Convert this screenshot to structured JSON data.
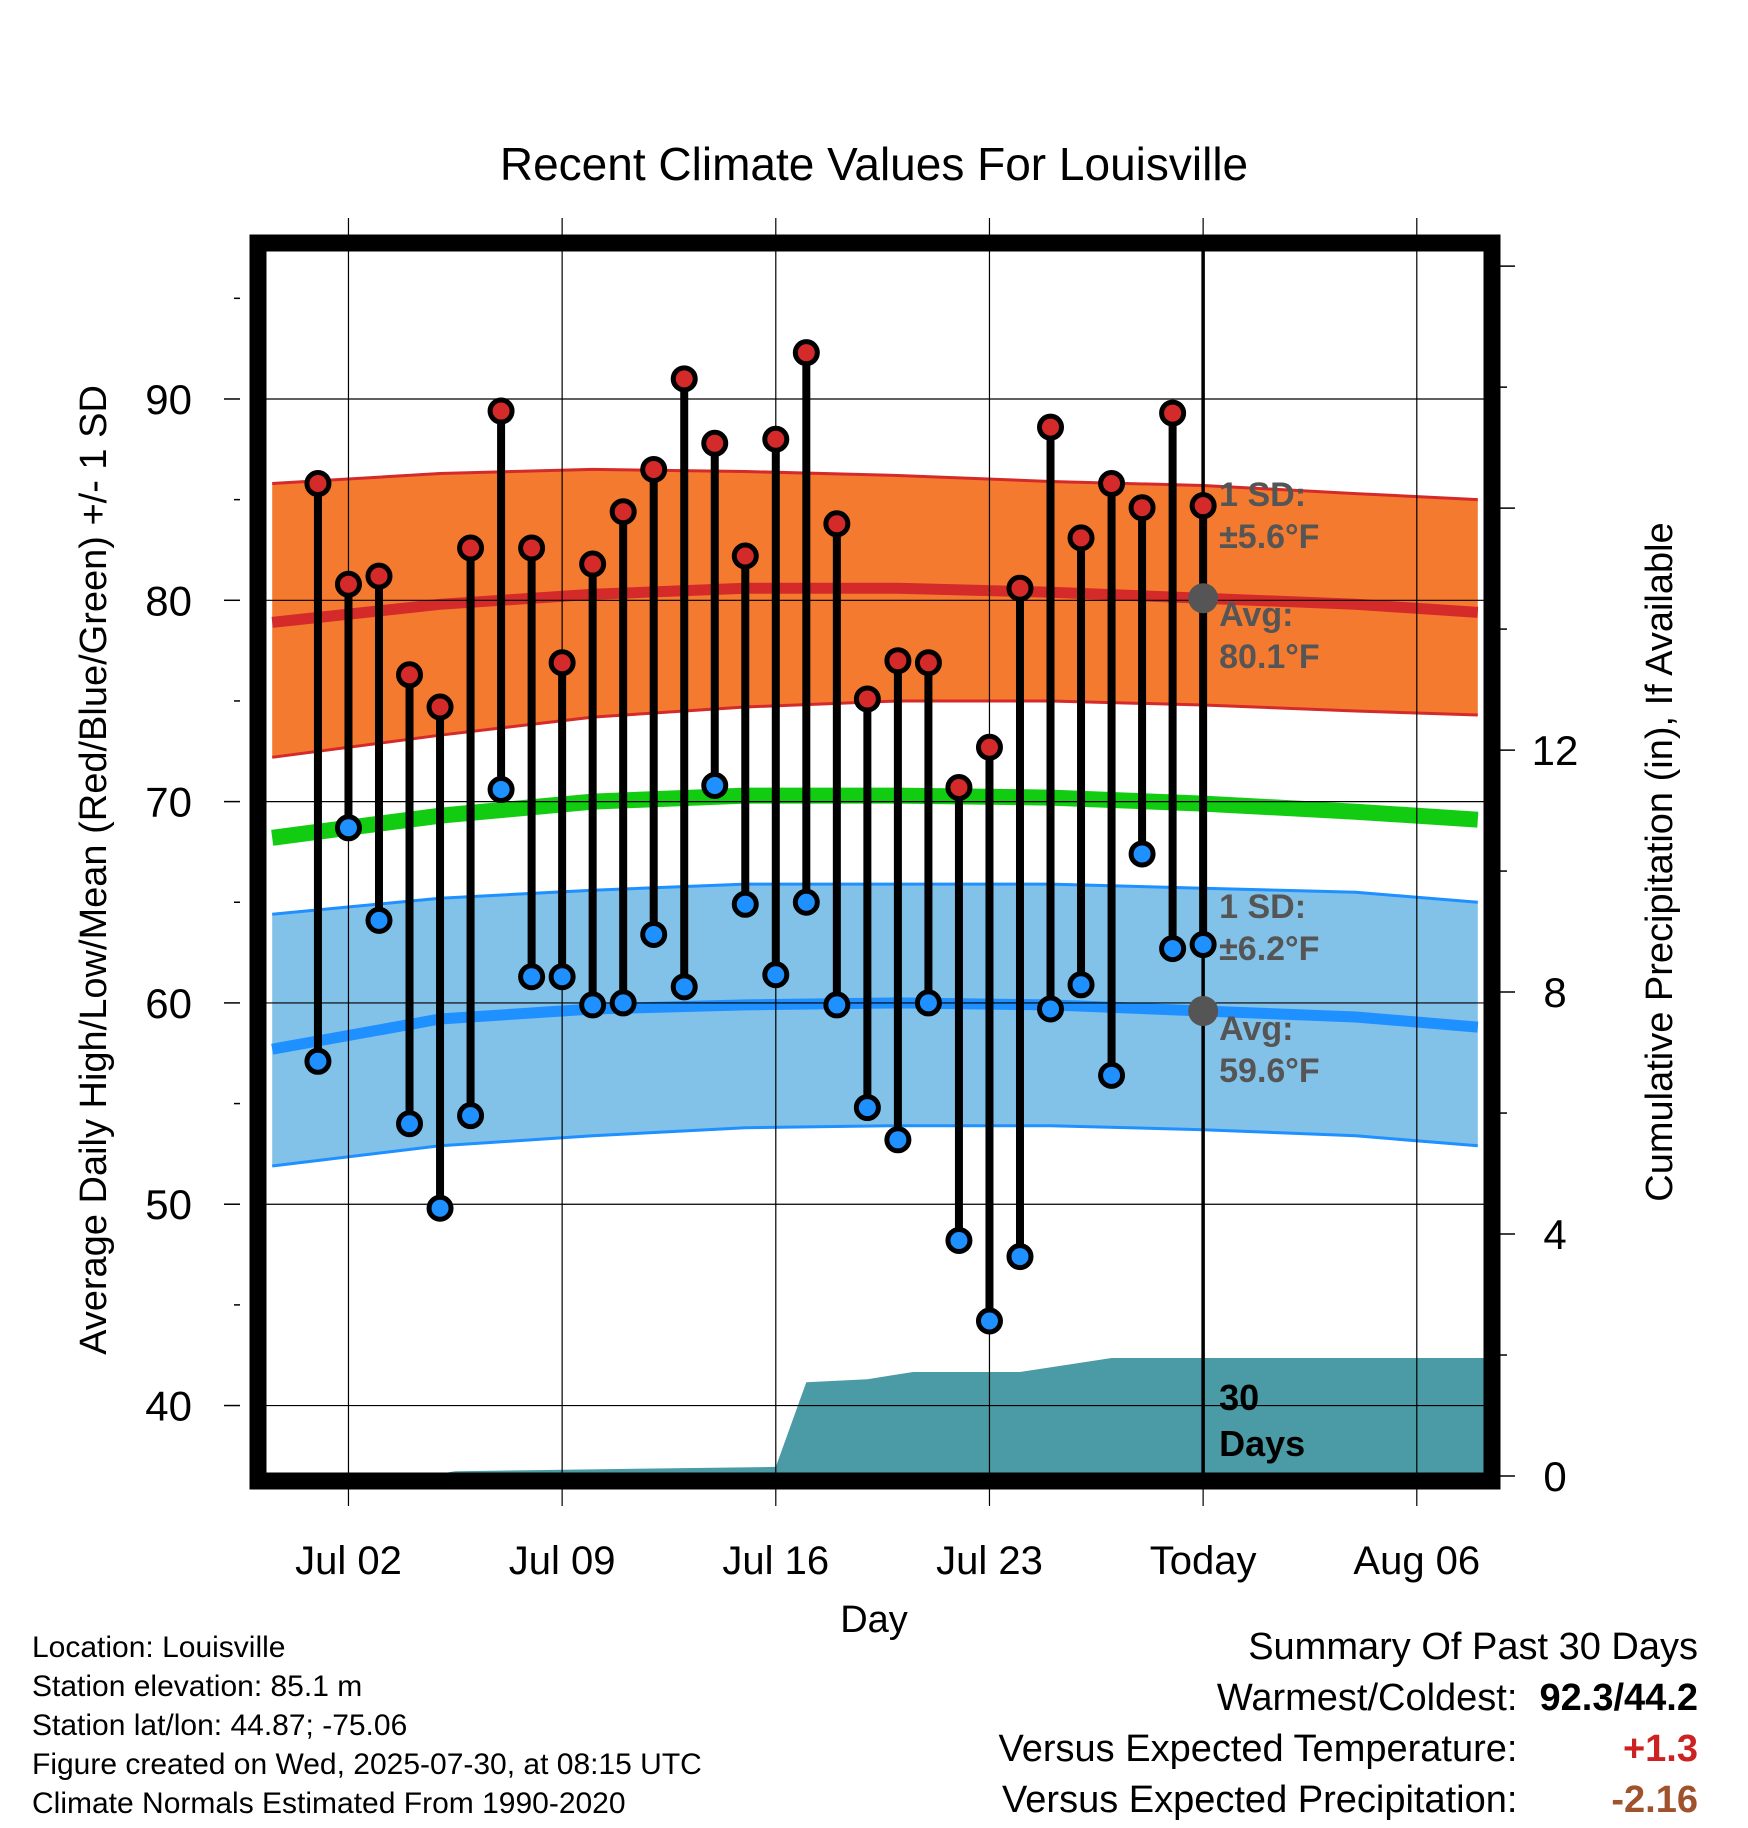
{
  "chart_data": {
    "type": "line",
    "title": "Recent Climate Values For Louisville",
    "xlabel": "Day",
    "ylabel_left": "Average Daily High/Low/Mean (Red/Blue/Green) +/- 1 SD",
    "ylabel_right": "Cumulative Precipitation (in), If Available",
    "x_ticks": [
      {
        "label": "Jul 02",
        "day": 2
      },
      {
        "label": "Jul 09",
        "day": 9
      },
      {
        "label": "Jul 16",
        "day": 16
      },
      {
        "label": "Jul 23",
        "day": 23
      },
      {
        "label": "Today",
        "day": 30
      },
      {
        "label": "Aug 06",
        "day": 37
      }
    ],
    "x_range_days": [
      -0.8,
      39.3
    ],
    "ylim_left": [
      36.5,
      97.5
    ],
    "y_ticks_left": [
      40,
      50,
      60,
      70,
      80,
      90
    ],
    "ylim_right": [
      0,
      20.3
    ],
    "y_ticks_right": [
      0,
      4,
      8,
      12
    ],
    "grid": true,
    "days": [
      1,
      2,
      3,
      4,
      5,
      6,
      7,
      8,
      9,
      10,
      11,
      12,
      13,
      14,
      15,
      16,
      17,
      18,
      19,
      20,
      21,
      22,
      23,
      24,
      25,
      26,
      27,
      28,
      29,
      30
    ],
    "daily_high": [
      85.8,
      80.8,
      81.2,
      76.3,
      74.7,
      82.6,
      89.4,
      82.6,
      76.9,
      81.8,
      84.4,
      86.5,
      91.0,
      87.8,
      82.2,
      88.0,
      92.3,
      83.8,
      75.1,
      77.0,
      76.9,
      70.7,
      72.7,
      80.6,
      88.6,
      83.1,
      85.8,
      84.6,
      89.3,
      84.7
    ],
    "daily_low": [
      57.1,
      68.7,
      64.1,
      54.0,
      49.8,
      54.4,
      70.6,
      61.3,
      61.3,
      59.9,
      60.0,
      63.4,
      60.8,
      70.8,
      64.9,
      61.4,
      65.0,
      59.9,
      54.8,
      53.2,
      60.0,
      48.2,
      44.2,
      47.4,
      59.7,
      60.9,
      56.4,
      67.4,
      62.7,
      62.9
    ],
    "normals_days": [
      -0.5,
      5,
      10,
      15,
      20,
      25,
      30,
      35,
      39
    ],
    "avg_high": [
      78.9,
      79.8,
      80.3,
      80.6,
      80.6,
      80.4,
      80.1,
      79.8,
      79.4
    ],
    "avg_high_upper": [
      85.8,
      86.3,
      86.5,
      86.4,
      86.2,
      85.9,
      85.7,
      85.3,
      85.0
    ],
    "avg_high_lower": [
      72.2,
      73.3,
      74.2,
      74.7,
      75.0,
      75.0,
      74.8,
      74.5,
      74.3
    ],
    "avg_mean": [
      68.2,
      69.3,
      70.0,
      70.3,
      70.3,
      70.2,
      69.9,
      69.5,
      69.1
    ],
    "avg_low": [
      57.7,
      59.2,
      59.7,
      59.9,
      60.0,
      59.9,
      59.6,
      59.3,
      58.8
    ],
    "avg_low_upper": [
      64.4,
      65.2,
      65.6,
      65.9,
      65.9,
      65.9,
      65.7,
      65.5,
      65.0
    ],
    "avg_low_lower": [
      51.9,
      52.9,
      53.4,
      53.8,
      53.9,
      53.9,
      53.7,
      53.4,
      52.9
    ],
    "cum_precip_days": [
      -0.8,
      4.5,
      5.5,
      16.0,
      17.0,
      19.0,
      20.5,
      24.0,
      27.0,
      39.3
    ],
    "cum_precip": [
      0,
      0,
      0.08,
      0.15,
      1.55,
      1.6,
      1.72,
      1.72,
      1.95,
      1.95
    ],
    "annotations": {
      "high_sd_label": "1 SD:",
      "high_sd_value": "±5.6°F",
      "high_avg_label": "Avg:",
      "high_avg_value": "80.1°F",
      "low_sd_label": "1 SD:",
      "low_sd_value": "±6.2°F",
      "low_avg_label": "Avg:",
      "low_avg_value": "59.6°F",
      "today_high_avg": 80.1,
      "today_low_avg": 59.6,
      "period_line1": "30",
      "period_line2": "Days"
    },
    "colors": {
      "high_band": "#f47a30",
      "high_line": "#d42a2a",
      "high_edge": "#d42a2a",
      "high_dot": "#d42a2a",
      "low_band": "#82c1e8",
      "low_line": "#1e90ff",
      "low_edge": "#1e90ff",
      "low_dot": "#1e90ff",
      "mean_line": "#11cc11",
      "precip_fill": "#4a9ba5",
      "annotation_text": "#555555"
    }
  },
  "info": {
    "location": "Location: Louisville",
    "elevation": "Station elevation: 85.1 m",
    "latlon": "Station lat/lon: 44.87; -75.06",
    "created": "Figure created on Wed, 2025-07-30, at 08:15 UTC",
    "normals": "Climate Normals Estimated From 1990-2020"
  },
  "summary": {
    "title": "Summary Of Past 30 Days",
    "warm_cold_label": "Warmest/Coldest:",
    "warm_cold_value": "92.3/44.2",
    "temp_label": "Versus Expected Temperature:",
    "temp_value": "+1.3",
    "precip_label": "Versus Expected Precipitation:",
    "precip_value": "-2.16"
  }
}
